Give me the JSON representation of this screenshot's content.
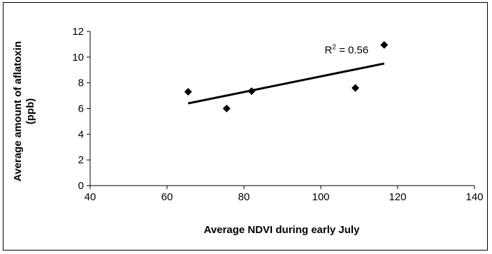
{
  "chart_data": {
    "type": "scatter",
    "xlabel": "Average NDVI during early July",
    "ylabel_lines": [
      "Average amount of aflatoxin",
      "(ppb)"
    ],
    "xlim": [
      40,
      140
    ],
    "ylim": [
      0,
      12
    ],
    "xticks": [
      40,
      60,
      80,
      100,
      120,
      140
    ],
    "yticks": [
      0,
      2,
      4,
      6,
      8,
      10,
      12
    ],
    "grid": false,
    "points": [
      {
        "x": 65.5,
        "y": 7.3
      },
      {
        "x": 75.5,
        "y": 6.0
      },
      {
        "x": 82.0,
        "y": 7.35
      },
      {
        "x": 109.0,
        "y": 7.6
      },
      {
        "x": 116.5,
        "y": 10.95
      }
    ],
    "trendline": {
      "x": [
        65.5,
        116.5
      ],
      "y": [
        6.4,
        9.5
      ]
    },
    "annotation": {
      "prefix": "R",
      "sup": "2",
      "suffix": " = 0.56",
      "x": 101,
      "y": 10.3
    },
    "marker_color": "#000000",
    "line_color": "#000000"
  }
}
